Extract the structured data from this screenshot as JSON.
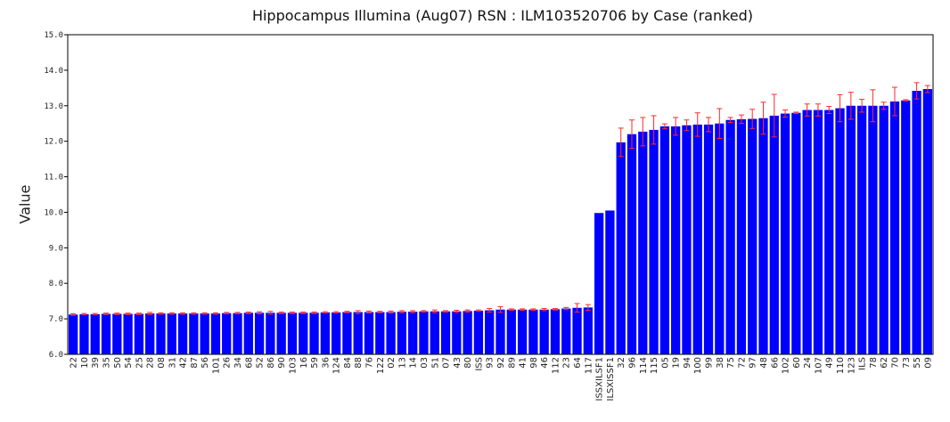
{
  "chart_data": {
    "type": "bar",
    "title": "Hippocampus Illumina (Aug07) RSN : ILM103520706 by Case (ranked)",
    "xlabel": "",
    "ylabel": "Value",
    "ylim": [
      6.0,
      15.0
    ],
    "yticks": [
      "6.0",
      "7.0",
      "8.0",
      "9.0",
      "10.0",
      "11.0",
      "12.0",
      "13.0",
      "14.0",
      "15.0"
    ],
    "grid": false,
    "bar_color": "#0000ff",
    "error_color": "#ff2a2a",
    "categories": [
      "22",
      "10",
      "39",
      "35",
      "50",
      "54",
      "25",
      "28",
      "08",
      "31",
      "42",
      "87",
      "56",
      "101",
      "26",
      "34",
      "68",
      "52",
      "86",
      "90",
      "103",
      "16",
      "59",
      "36",
      "124",
      "84",
      "88",
      "76",
      "122",
      "02",
      "13",
      "14",
      "03",
      "51",
      "07",
      "43",
      "80",
      "ISS",
      "93",
      "92",
      "89",
      "41",
      "98",
      "46",
      "112",
      "23",
      "64",
      "117",
      "ISSXILSF1",
      "ILSXISSF1",
      "32",
      "96",
      "114",
      "115",
      "05",
      "19",
      "94",
      "100",
      "99",
      "38",
      "75",
      "72",
      "97",
      "48",
      "66",
      "102",
      "60",
      "24",
      "107",
      "49",
      "110",
      "123",
      "ILS",
      "78",
      "62",
      "70",
      "73",
      "55",
      "09"
    ],
    "values": [
      7.12,
      7.13,
      7.13,
      7.14,
      7.14,
      7.14,
      7.14,
      7.15,
      7.15,
      7.15,
      7.15,
      7.15,
      7.15,
      7.15,
      7.16,
      7.16,
      7.17,
      7.17,
      7.17,
      7.17,
      7.17,
      7.17,
      7.17,
      7.18,
      7.18,
      7.19,
      7.19,
      7.19,
      7.19,
      7.19,
      7.2,
      7.2,
      7.21,
      7.21,
      7.21,
      7.21,
      7.22,
      7.23,
      7.24,
      7.26,
      7.26,
      7.26,
      7.26,
      7.26,
      7.27,
      7.29,
      7.31,
      7.32,
      9.98,
      10.05,
      11.97,
      12.2,
      12.27,
      12.32,
      12.42,
      12.42,
      12.45,
      12.47,
      12.47,
      12.5,
      12.6,
      12.62,
      12.63,
      12.65,
      12.72,
      12.78,
      12.8,
      12.88,
      12.88,
      12.88,
      12.93,
      13.0,
      13.0,
      13.0,
      13.0,
      13.12,
      13.15,
      13.42,
      13.47
    ],
    "errors": [
      0.02,
      0.02,
      0.02,
      0.02,
      0.02,
      0.02,
      0.02,
      0.03,
      0.02,
      0.02,
      0.02,
      0.02,
      0.02,
      0.02,
      0.02,
      0.02,
      0.02,
      0.03,
      0.04,
      0.02,
      0.02,
      0.02,
      0.02,
      0.02,
      0.02,
      0.02,
      0.04,
      0.03,
      0.02,
      0.03,
      0.03,
      0.03,
      0.02,
      0.04,
      0.02,
      0.03,
      0.03,
      0.02,
      0.05,
      0.08,
      0.02,
      0.02,
      0.02,
      0.03,
      0.02,
      0.03,
      0.12,
      0.08,
      0,
      0,
      0.4,
      0.4,
      0.4,
      0.4,
      0.07,
      0.25,
      0.15,
      0.33,
      0.2,
      0.42,
      0.07,
      0.12,
      0.27,
      0.45,
      0.6,
      0.1,
      0.02,
      0.17,
      0.17,
      0.1,
      0.38,
      0.38,
      0.18,
      0.45,
      0.1,
      0.4,
      0.02,
      0.23,
      0.1
    ]
  }
}
